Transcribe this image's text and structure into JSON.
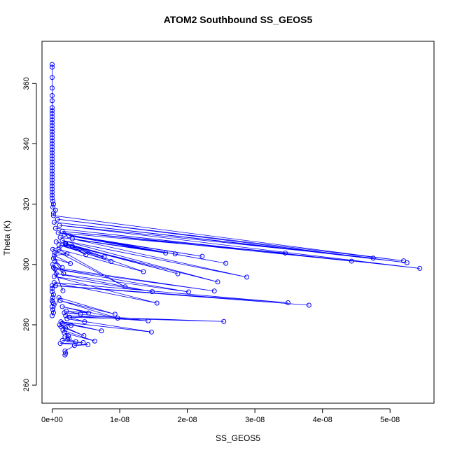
{
  "chart_data": {
    "type": "scatter",
    "title": "ATOM2 Southbound SS_GEOS5",
    "xlabel": "SS_GEOS5",
    "ylabel": "Theta (K)",
    "xlim": [
      -1.5e-09,
      5.65e-08
    ],
    "ylim": [
      254,
      374
    ],
    "x_ticks": [
      0,
      1e-08,
      2e-08,
      3e-08,
      4e-08,
      5e-08
    ],
    "x_tick_labels": [
      "0e+00",
      "1e-08",
      "2e-08",
      "3e-08",
      "4e-08",
      "5e-08"
    ],
    "y_ticks": [
      260,
      280,
      300,
      320,
      340,
      360
    ],
    "y_tick_labels": [
      "260",
      "280",
      "300",
      "320",
      "340",
      "360"
    ],
    "grid": false,
    "color": "#0000ff",
    "series": [
      {
        "values": [
          {
            "x": 0,
            "y": 366.3
          },
          {
            "x": 0,
            "y": 365.4
          },
          {
            "x": 0,
            "y": 362
          },
          {
            "x": 0,
            "y": 358.5
          },
          {
            "x": 0,
            "y": 356
          },
          {
            "x": 0,
            "y": 354.3
          },
          {
            "x": 0,
            "y": 352
          },
          {
            "x": 0,
            "y": 351
          },
          {
            "x": 0,
            "y": 350
          },
          {
            "x": 0,
            "y": 349
          },
          {
            "x": 0,
            "y": 348
          },
          {
            "x": 0,
            "y": 347
          },
          {
            "x": 0,
            "y": 346
          },
          {
            "x": 0,
            "y": 345
          },
          {
            "x": 0,
            "y": 344
          },
          {
            "x": 0,
            "y": 343
          },
          {
            "x": 0,
            "y": 342
          },
          {
            "x": 0,
            "y": 341
          },
          {
            "x": 0,
            "y": 340
          },
          {
            "x": 0,
            "y": 339
          },
          {
            "x": 0,
            "y": 338
          },
          {
            "x": 0,
            "y": 337
          },
          {
            "x": 0,
            "y": 336
          },
          {
            "x": 0,
            "y": 335
          },
          {
            "x": 0,
            "y": 334
          },
          {
            "x": 0,
            "y": 333
          },
          {
            "x": 0,
            "y": 332
          },
          {
            "x": 0,
            "y": 331
          },
          {
            "x": 0,
            "y": 330
          },
          {
            "x": 0,
            "y": 329
          },
          {
            "x": 0,
            "y": 328
          },
          {
            "x": 0,
            "y": 327
          },
          {
            "x": 0,
            "y": 326
          },
          {
            "x": 0,
            "y": 325
          },
          {
            "x": 0,
            "y": 324
          },
          {
            "x": 0,
            "y": 323
          },
          {
            "x": 0,
            "y": 322
          },
          {
            "x": 1e-10,
            "y": 321
          },
          {
            "x": 2e-10,
            "y": 320
          },
          {
            "x": 1e-10,
            "y": 319
          },
          {
            "x": 5e-10,
            "y": 318
          },
          {
            "x": 2e-10,
            "y": 317
          },
          {
            "x": 2e-10,
            "y": 316.2
          },
          {
            "x": 5.2e-08,
            "y": 301.2
          },
          {
            "x": 8e-10,
            "y": 315
          },
          {
            "x": 5.25e-08,
            "y": 300.6
          },
          {
            "x": 3e-10,
            "y": 314
          },
          {
            "x": 4.75e-08,
            "y": 302.1
          },
          {
            "x": 1.1e-09,
            "y": 313
          },
          {
            "x": 5.44e-08,
            "y": 298.7
          },
          {
            "x": 5e-10,
            "y": 312
          },
          {
            "x": 4.43e-08,
            "y": 301.1
          },
          {
            "x": 1.5e-09,
            "y": 311
          },
          {
            "x": 3.45e-08,
            "y": 303.8
          },
          {
            "x": 9e-10,
            "y": 310.5
          },
          {
            "x": 2.57e-08,
            "y": 300.4
          },
          {
            "x": 1.8e-09,
            "y": 310
          },
          {
            "x": 2.22e-08,
            "y": 302.7
          },
          {
            "x": 2.5e-09,
            "y": 309.5
          },
          {
            "x": 1.68e-08,
            "y": 303.8
          },
          {
            "x": 1.2e-09,
            "y": 309
          },
          {
            "x": 1.82e-08,
            "y": 303.5
          },
          {
            "x": 3e-09,
            "y": 308.5
          },
          {
            "x": 2.88e-08,
            "y": 295.8
          },
          {
            "x": 1.5e-09,
            "y": 308
          },
          {
            "x": 2.45e-08,
            "y": 294.2
          },
          {
            "x": 6e-10,
            "y": 307.5
          },
          {
            "x": 1.86e-08,
            "y": 296.9
          },
          {
            "x": 2e-09,
            "y": 307
          },
          {
            "x": 7.7e-09,
            "y": 302.5
          },
          {
            "x": 1e-09,
            "y": 306.5
          },
          {
            "x": 8.7e-09,
            "y": 301
          },
          {
            "x": 2e-09,
            "y": 306.5
          },
          {
            "x": 5e-09,
            "y": 303.2
          },
          {
            "x": 3e-09,
            "y": 306
          },
          {
            "x": 1.35e-08,
            "y": 297.6
          },
          {
            "x": 1e-09,
            "y": 305
          },
          {
            "x": 1.08e-08,
            "y": 292.6
          },
          {
            "x": 1e-10,
            "y": 305
          },
          {
            "x": 2e-09,
            "y": 306.8
          },
          {
            "x": 4e-10,
            "y": 304
          },
          {
            "x": 2.2e-09,
            "y": 303.5
          },
          {
            "x": 3e-10,
            "y": 303
          },
          {
            "x": 2.7e-09,
            "y": 300.3
          },
          {
            "x": 2e-10,
            "y": 302
          },
          {
            "x": 1.5e-09,
            "y": 299
          },
          {
            "x": 4e-10,
            "y": 301
          },
          {
            "x": 1.7e-09,
            "y": 297
          },
          {
            "x": 1e-10,
            "y": 300
          },
          {
            "x": 1.6e-09,
            "y": 291.3
          },
          {
            "x": 2e-10,
            "y": 299
          },
          {
            "x": 2.4e-08,
            "y": 291.2
          },
          {
            "x": 4e-10,
            "y": 298.5
          },
          {
            "x": 2.02e-08,
            "y": 290.9
          },
          {
            "x": 6e-10,
            "y": 297
          },
          {
            "x": 1.48e-08,
            "y": 291
          },
          {
            "x": 3e-10,
            "y": 296
          },
          {
            "x": 1.55e-08,
            "y": 287.2
          },
          {
            "x": 3e-10,
            "y": 294
          },
          {
            "x": 3.49e-08,
            "y": 287.3
          },
          {
            "x": 5e-10,
            "y": 293
          },
          {
            "x": 3.8e-08,
            "y": 286.5
          },
          {
            "x": 0,
            "y": 293
          },
          {
            "x": 0,
            "y": 292
          },
          {
            "x": 0,
            "y": 291
          },
          {
            "x": 2e-10,
            "y": 290
          },
          {
            "x": 1e-10,
            "y": 289
          },
          {
            "x": 0,
            "y": 288
          },
          {
            "x": 1e-10,
            "y": 287.5
          },
          {
            "x": 2e-10,
            "y": 287
          },
          {
            "x": 0,
            "y": 286
          },
          {
            "x": 1e-10,
            "y": 285
          },
          {
            "x": 2e-10,
            "y": 284
          },
          {
            "x": 0,
            "y": 283
          },
          {
            "x": 1e-09,
            "y": 289
          },
          {
            "x": 9.3e-09,
            "y": 283.5
          },
          {
            "x": 1.2e-09,
            "y": 288
          },
          {
            "x": 9.7e-09,
            "y": 282.2
          },
          {
            "x": 1.5e-09,
            "y": 286
          },
          {
            "x": 5.4e-09,
            "y": 283.9
          },
          {
            "x": 2.1e-09,
            "y": 284.5
          },
          {
            "x": 4.2e-09,
            "y": 283.6
          },
          {
            "x": 1.8e-09,
            "y": 284
          },
          {
            "x": 1.42e-08,
            "y": 281.3
          },
          {
            "x": 2e-09,
            "y": 283
          },
          {
            "x": 2.54e-08,
            "y": 281.1
          },
          {
            "x": 2.6e-09,
            "y": 282.5
          },
          {
            "x": 4.8e-09,
            "y": 281
          },
          {
            "x": 2.2e-09,
            "y": 282
          },
          {
            "x": 1.47e-08,
            "y": 277.6
          },
          {
            "x": 1.3e-09,
            "y": 281
          },
          {
            "x": 7.3e-09,
            "y": 278
          },
          {
            "x": 1.5e-09,
            "y": 280.5
          },
          {
            "x": 2.8e-09,
            "y": 279.8
          },
          {
            "x": 1.1e-09,
            "y": 280
          },
          {
            "x": 4.7e-09,
            "y": 276.4
          },
          {
            "x": 1.3e-09,
            "y": 279.4
          },
          {
            "x": 2e-09,
            "y": 278.9
          },
          {
            "x": 1.6e-09,
            "y": 278.2
          },
          {
            "x": 6.3e-09,
            "y": 274.6
          },
          {
            "x": 1.8e-09,
            "y": 277.3
          },
          {
            "x": 2.4e-09,
            "y": 276.4
          },
          {
            "x": 1.9e-09,
            "y": 276
          },
          {
            "x": 2.5e-09,
            "y": 275.4
          },
          {
            "x": 2.3e-09,
            "y": 275.2
          },
          {
            "x": 3.5e-09,
            "y": 274.4
          },
          {
            "x": 1.5e-09,
            "y": 274.8
          },
          {
            "x": 4.6e-09,
            "y": 274.1
          },
          {
            "x": 1.2e-09,
            "y": 273.8
          },
          {
            "x": 5.3e-09,
            "y": 273.4
          },
          {
            "x": 3.3e-09,
            "y": 273.1
          },
          {
            "x": 1.9e-09,
            "y": 271.3
          },
          {
            "x": 2e-09,
            "y": 270.6
          },
          {
            "x": 1.9e-09,
            "y": 270
          }
        ]
      }
    ]
  }
}
